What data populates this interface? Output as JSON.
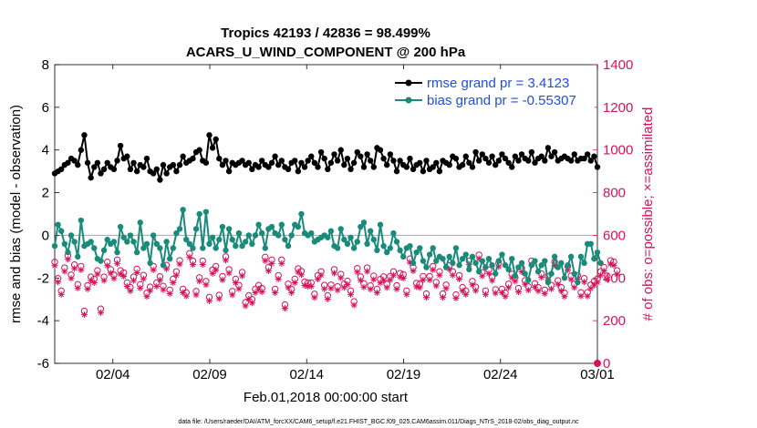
{
  "chart_data": {
    "type": "line",
    "title_line1": "Tropics 42193 / 42836 = 98.499%",
    "title_line2": "ACARS_U_WIND_COMPONENT @ 200 hPa",
    "xlabel": "Feb.01,2018 00:00:00 start",
    "ylabel_left": "rmse and bias (model - observation)",
    "ylabel_right": "# of obs: o=possible; ×=assimilated",
    "footer": "data file: /Users/raeder/DAI/ATM_forcXX/CAM6_setup/f.e21.FHIST_BGC.f09_025.CAM6assim.011/Diags_NTrS_2018-02/obs_diag_output.nc",
    "x_ticks": [
      "02/04",
      "02/09",
      "02/14",
      "02/19",
      "02/24",
      "03/01"
    ],
    "x_tick_days": [
      3,
      8,
      13,
      18,
      23,
      28
    ],
    "xlim_days": [
      0,
      28
    ],
    "ylim_left": [
      -6,
      8
    ],
    "y_ticks_left": [
      "-6",
      "-4",
      "-2",
      "0",
      "2",
      "4",
      "6",
      "8"
    ],
    "ylim_right": [
      0,
      1400
    ],
    "y_ticks_right": [
      "0",
      "200",
      "400",
      "600",
      "800",
      "1000",
      "1200",
      "1400"
    ],
    "colors": {
      "rmse": "#000000",
      "bias": "#1a8a7a",
      "obs": "#d6135a",
      "legend_text": "#1f4fe0",
      "zero_line": "#b0b0b0"
    },
    "series": [
      {
        "name": "rmse grand pr = 3.4123",
        "key": "rmse",
        "values": [
          2.9,
          3.0,
          3.1,
          3.3,
          3.4,
          3.6,
          3.5,
          3.3,
          4.0,
          4.7,
          3.4,
          2.7,
          3.2,
          3.4,
          2.9,
          3.1,
          3.4,
          3.2,
          3.1,
          3.5,
          4.2,
          3.6,
          3.7,
          3.1,
          3.4,
          3.0,
          3.3,
          3.2,
          3.6,
          3.0,
          2.9,
          3.1,
          2.6,
          3.3,
          2.9,
          3.2,
          3.3,
          3.0,
          3.3,
          3.7,
          3.4,
          3.5,
          3.6,
          3.9,
          4.0,
          3.5,
          3.4,
          4.7,
          4.1,
          4.5,
          3.6,
          3.3,
          3.5,
          3.0,
          3.4,
          3.3,
          3.4,
          3.5,
          3.3,
          3.4,
          3.1,
          3.3,
          3.2,
          3.5,
          3.3,
          3.2,
          3.4,
          3.7,
          3.3,
          3.5,
          3.2,
          3.1,
          3.4,
          3.5,
          3.0,
          3.4,
          3.2,
          3.5,
          3.7,
          3.4,
          3.2,
          3.9,
          3.6,
          3.1,
          3.4,
          3.8,
          3.5,
          4.0,
          3.3,
          3.6,
          3.1,
          3.4,
          3.9,
          3.7,
          3.2,
          3.8,
          3.5,
          3.2,
          4.1,
          4.0,
          3.6,
          3.3,
          3.8,
          3.5,
          3.0,
          3.5,
          3.3,
          3.2,
          3.6,
          3.1,
          3.3,
          3.4,
          3.0,
          3.5,
          3.1,
          3.2,
          3.4,
          3.0,
          3.5,
          3.4,
          3.3,
          3.7,
          3.6,
          3.2,
          3.3,
          3.7,
          3.4,
          3.2,
          3.9,
          3.5,
          3.8,
          3.6,
          3.4,
          3.7,
          3.3,
          3.5,
          3.8,
          3.6,
          3.4,
          3.2,
          3.7,
          3.5,
          3.8,
          3.6,
          3.5,
          3.9,
          3.4,
          3.6,
          3.7,
          3.5,
          4.1,
          3.7,
          3.9,
          3.5,
          3.6,
          3.7,
          3.6,
          3.5,
          3.8,
          3.5,
          3.6,
          3.6,
          3.8,
          3.5,
          3.7,
          3.2
        ]
      },
      {
        "name": "bias grand pr = -0.55307",
        "key": "bias",
        "values": [
          -0.5,
          0.5,
          0.2,
          -0.4,
          -0.8,
          0.0,
          -0.3,
          -1.0,
          0.7,
          -0.5,
          -0.4,
          -0.3,
          -0.6,
          -1.1,
          -1.2,
          -0.7,
          -0.2,
          -0.4,
          -0.3,
          -0.8,
          0.4,
          -0.1,
          -0.3,
          0.0,
          -0.3,
          -0.8,
          0.6,
          -0.6,
          -0.4,
          -1.3,
          0.0,
          -0.4,
          -0.6,
          -1.4,
          -0.3,
          -1.1,
          -0.6,
          0.1,
          0.3,
          1.2,
          -0.2,
          -0.4,
          -0.6,
          0.3,
          1.0,
          -0.6,
          1.1,
          -0.4,
          -0.1,
          -0.6,
          -0.2,
          0.4,
          -0.7,
          0.3,
          -0.2,
          -0.5,
          0.1,
          -0.5,
          -0.3,
          0.0,
          -0.4,
          0.0,
          0.5,
          0.1,
          -0.6,
          0.3,
          0.4,
          0.1,
          0.0,
          0.5,
          -0.2,
          -0.5,
          0.0,
          0.5,
          0.4,
          1.0,
          0.1,
          0.0,
          0.1,
          -0.3,
          -0.2,
          -0.1,
          0.0,
          -0.1,
          0.2,
          -0.5,
          -0.6,
          0.3,
          -0.2,
          -0.4,
          -0.1,
          -0.6,
          -0.3,
          0.4,
          0.6,
          -0.4,
          0.2,
          -0.2,
          -0.7,
          0.5,
          -0.5,
          -0.8,
          -0.6,
          0.1,
          -0.3,
          -0.7,
          -1.0,
          -0.6,
          -0.5,
          -1.3,
          -0.8,
          -0.6,
          -1.2,
          -1.5,
          -0.9,
          -0.6,
          -1.2,
          -1.0,
          -1.1,
          -1.5,
          -1.0,
          -1.3,
          -0.6,
          -1.4,
          -1.1,
          -0.9,
          -1.6,
          -1.0,
          -1.3,
          -1.7,
          -1.2,
          -1.5,
          -1.1,
          -1.4,
          -1.8,
          -1.2,
          -0.9,
          -1.4,
          -1.6,
          -1.1,
          -1.9,
          -1.5,
          -1.3,
          -1.8,
          -2.1,
          -1.4,
          -1.2,
          -1.7,
          -1.4,
          -1.2,
          -2.2,
          -1.8,
          -1.0,
          -1.5,
          -1.3,
          -2.0,
          -1.4,
          -1.0,
          -1.8,
          -2.2,
          -1.0,
          -1.3,
          -0.4,
          -0.4,
          -1.1,
          -0.8,
          -1.3
        ]
      },
      {
        "name": "obs_possible",
        "key": "obs",
        "values": [
          475,
          398,
          340,
          448,
          505,
          415,
          462,
          370,
          455,
          245,
          365,
          405,
          395,
          435,
          255,
          405,
          475,
          440,
          415,
          485,
          435,
          425,
          378,
          356,
          405,
          442,
          370,
          413,
          330,
          358,
          455,
          378,
          407,
          362,
          460,
          344,
          395,
          430,
          482,
          348,
          332,
          515,
          480,
          338,
          402,
          480,
          385,
          310,
          438,
          455,
          320,
          408,
          500,
          440,
          338,
          395,
          366,
          427,
          286,
          318,
          300,
          348,
          366,
          352,
          498,
          450,
          485,
          348,
          412,
          485,
          275,
          372,
          348,
          395,
          444,
          432,
          382,
          378,
          378,
          325,
          412,
          430,
          366,
          318,
          368,
          440,
          360,
          418,
          372,
          386,
          340,
          290,
          445,
          406,
          374,
          448,
          364,
          410,
          348,
          394,
          406,
          372,
          408,
          430,
          365,
          422,
          416,
          340,
          490,
          450,
          376,
          372,
          408,
          326,
          408,
          455,
          380,
          430,
          326,
          368,
          458,
          430,
          322,
          412,
          356,
          340,
          480,
          385,
          358,
          508,
          426,
          340,
          438,
          405,
          346,
          470,
          348,
          330,
          372,
          418,
          402,
          352,
          446,
          388,
          360,
          480,
          374,
          356,
          420,
          344,
          408,
          366,
          476,
          388,
          356,
          330,
          455,
          410,
          372,
          412,
          332,
          398,
          332,
          368,
          384,
          396,
          430,
          450,
          410,
          482,
          476,
          435
        ]
      }
    ]
  }
}
